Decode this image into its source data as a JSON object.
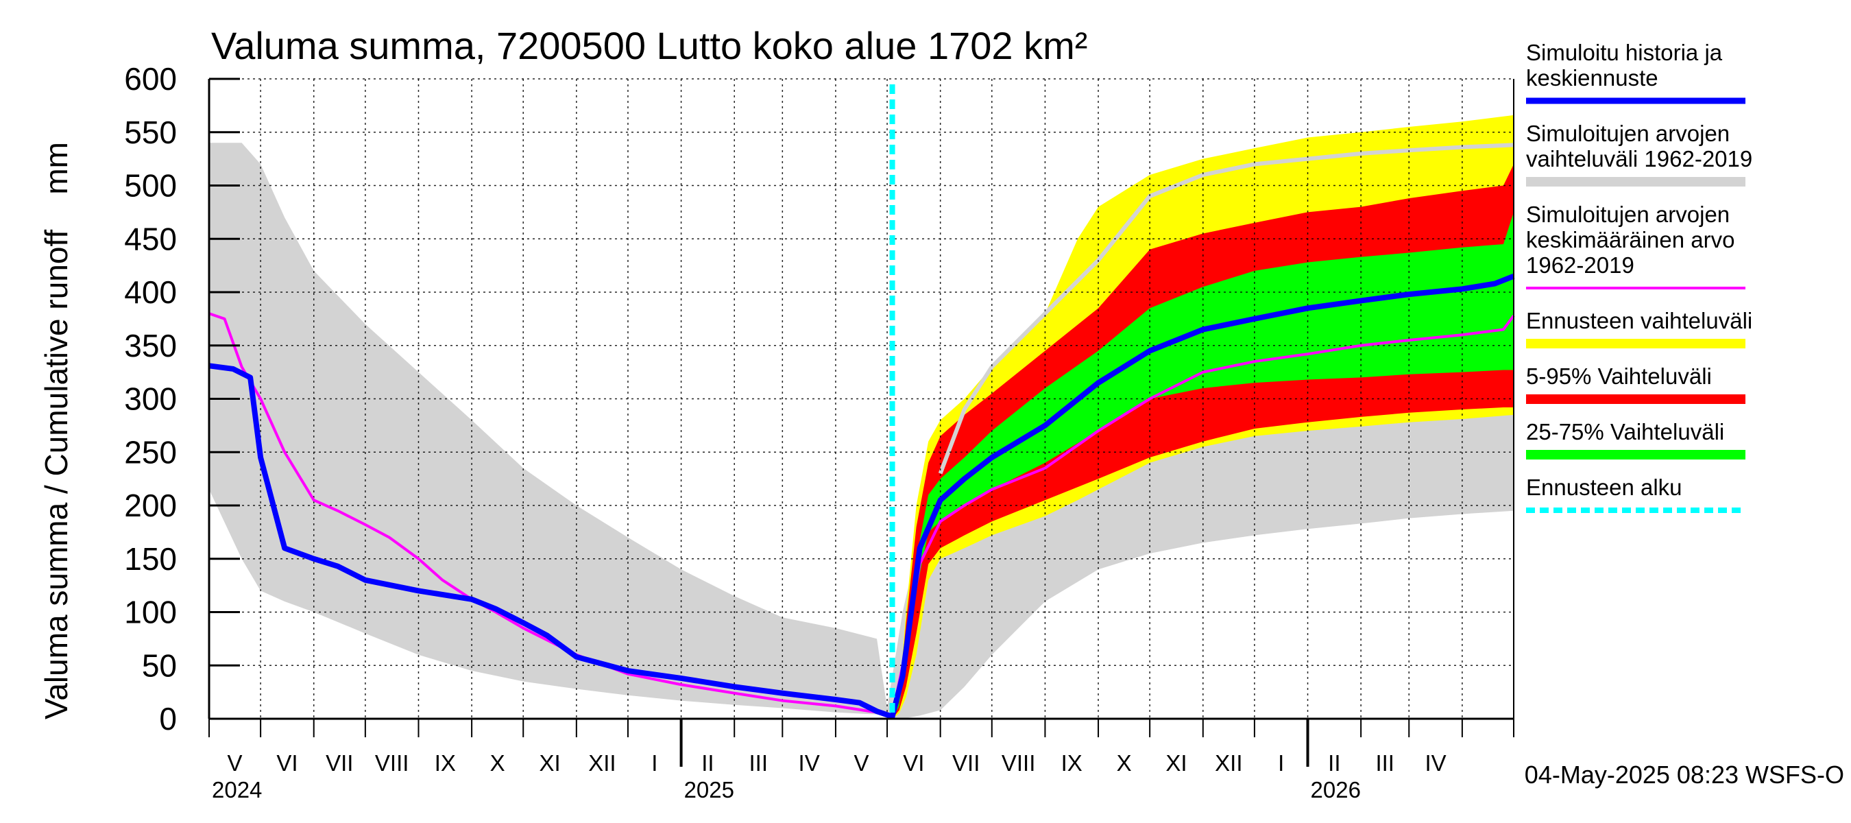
{
  "chart_data": {
    "type": "area",
    "title": "Valuma summa, 7200500 Lutto koko alue 1702 km²",
    "ylabel": "Valuma summa / Cumulative runoff    mm",
    "ylim": [
      0,
      600
    ],
    "yticks": [
      0,
      50,
      100,
      150,
      200,
      250,
      300,
      350,
      400,
      450,
      500,
      550,
      600
    ],
    "x_range": [
      "2024-04-01",
      "2026-05-01"
    ],
    "month_labels": [
      "V",
      "VI",
      "VII",
      "VIII",
      "IX",
      "X",
      "XI",
      "XII",
      "I",
      "II",
      "III",
      "IV",
      "V",
      "VI",
      "VII",
      "VIII",
      "IX",
      "X",
      "XI",
      "XII",
      "I",
      "II",
      "III",
      "IV"
    ],
    "year_labels": [
      {
        "label": "2024",
        "date": "2024-04-01"
      },
      {
        "label": "2025",
        "date": "2025-01-01"
      },
      {
        "label": "2026",
        "date": "2026-01-01"
      }
    ],
    "forecast_start": "2025-05-04",
    "timestamp": "04-May-2025 08:23 WSFS-O",
    "colors": {
      "median": "#0000ff",
      "historical_range": "#d3d3d3",
      "historical_mean": "#ff00ff",
      "forecast_range": "#ffff00",
      "p5_95": "#ff0000",
      "p25_75": "#00ff00",
      "forecast_start": "#00ffff"
    },
    "legend": [
      {
        "key": "median",
        "label": [
          "Simuloitu historia ja",
          "keskiennuste"
        ],
        "style": "line"
      },
      {
        "key": "historical_range",
        "label": [
          "Simuloitujen arvojen",
          "vaihteluväli 1962-2019"
        ],
        "style": "band"
      },
      {
        "key": "historical_mean",
        "label": [
          "Simuloitujen arvojen",
          "keskimääräinen arvo",
          "   1962-2019"
        ],
        "style": "thin"
      },
      {
        "key": "forecast_range",
        "label": [
          "Ennusteen vaihteluväli"
        ],
        "style": "band"
      },
      {
        "key": "p5_95",
        "label": [
          "5-95% Vaihteluväli"
        ],
        "style": "band"
      },
      {
        "key": "p25_75",
        "label": [
          "25-75% Vaihteluväli"
        ],
        "style": "band"
      },
      {
        "key": "forecast_start",
        "label": [
          "Ennusteen alku"
        ],
        "style": "dash"
      }
    ],
    "series": [
      {
        "key": "historical_range",
        "dates": [
          "2024-04-01",
          "2024-04-20",
          "2024-05-01",
          "2024-05-15",
          "2024-06-01",
          "2024-07-01",
          "2024-08-01",
          "2024-09-01",
          "2024-10-01",
          "2024-11-01",
          "2024-12-01",
          "2025-01-01",
          "2025-02-01",
          "2025-03-01",
          "2025-04-01",
          "2025-04-25",
          "2025-05-01",
          "2025-05-10",
          "2025-05-20",
          "2025-06-01",
          "2025-06-15",
          "2025-07-01",
          "2025-08-01",
          "2025-09-01",
          "2025-10-01",
          "2025-11-01",
          "2025-12-01",
          "2026-01-01",
          "2026-02-01",
          "2026-03-01",
          "2026-04-01",
          "2026-05-01"
        ],
        "low": [
          215,
          150,
          120,
          110,
          100,
          80,
          60,
          45,
          35,
          28,
          22,
          17,
          13,
          10,
          6,
          4,
          2,
          0,
          3,
          8,
          30,
          60,
          110,
          140,
          155,
          165,
          172,
          178,
          183,
          188,
          192,
          195
        ],
        "high": [
          540,
          540,
          520,
          470,
          420,
          370,
          325,
          280,
          235,
          200,
          170,
          140,
          115,
          95,
          85,
          75,
          10,
          100,
          170,
          230,
          290,
          330,
          380,
          430,
          490,
          510,
          520,
          525,
          530,
          533,
          536,
          538
        ]
      },
      {
        "key": "forecast_range",
        "dates": [
          "2025-05-04",
          "2025-05-08",
          "2025-05-12",
          "2025-05-18",
          "2025-05-25",
          "2025-06-01",
          "2025-06-15",
          "2025-07-01",
          "2025-08-01",
          "2025-08-20",
          "2025-09-01",
          "2025-10-01",
          "2025-11-01",
          "2025-12-01",
          "2026-01-01",
          "2026-02-01",
          "2026-03-01",
          "2026-04-01",
          "2026-05-01"
        ],
        "low": [
          0,
          5,
          20,
          60,
          130,
          150,
          160,
          172,
          190,
          205,
          215,
          240,
          255,
          265,
          270,
          274,
          278,
          281,
          285
        ],
        "high": [
          0,
          20,
          100,
          200,
          260,
          280,
          300,
          330,
          380,
          450,
          480,
          510,
          525,
          535,
          545,
          550,
          555,
          560,
          566
        ]
      },
      {
        "key": "p5_95",
        "dates": [
          "2025-05-04",
          "2025-05-08",
          "2025-05-12",
          "2025-05-18",
          "2025-05-25",
          "2025-06-01",
          "2025-06-15",
          "2025-07-01",
          "2025-08-01",
          "2025-09-01",
          "2025-10-01",
          "2025-11-01",
          "2025-12-01",
          "2026-01-01",
          "2026-02-01",
          "2026-03-01",
          "2026-04-01",
          "2026-04-25",
          "2026-05-01"
        ],
        "low": [
          0,
          8,
          30,
          80,
          145,
          160,
          172,
          185,
          205,
          225,
          245,
          260,
          272,
          278,
          283,
          287,
          290,
          292,
          292
        ],
        "high": [
          0,
          18,
          90,
          180,
          240,
          265,
          285,
          305,
          345,
          385,
          440,
          455,
          465,
          475,
          480,
          488,
          495,
          500,
          520
        ]
      },
      {
        "key": "p25_75",
        "dates": [
          "2025-05-04",
          "2025-05-08",
          "2025-05-12",
          "2025-05-18",
          "2025-05-25",
          "2025-06-01",
          "2025-06-15",
          "2025-07-01",
          "2025-08-01",
          "2025-09-01",
          "2025-10-01",
          "2025-11-01",
          "2025-12-01",
          "2026-01-01",
          "2026-02-01",
          "2026-03-01",
          "2026-04-01",
          "2026-04-25",
          "2026-05-01"
        ],
        "low": [
          0,
          12,
          55,
          120,
          175,
          185,
          200,
          215,
          240,
          270,
          300,
          310,
          315,
          318,
          320,
          323,
          325,
          327,
          327
        ],
        "high": [
          0,
          15,
          75,
          150,
          210,
          225,
          245,
          270,
          310,
          345,
          385,
          405,
          420,
          428,
          433,
          437,
          442,
          445,
          475
        ]
      },
      {
        "key": "historical_mean",
        "dates": [
          "2024-04-01",
          "2024-04-10",
          "2024-04-20",
          "2024-05-01",
          "2024-05-15",
          "2024-06-01",
          "2024-06-15",
          "2024-07-01",
          "2024-07-15",
          "2024-08-01",
          "2024-08-15",
          "2024-09-01",
          "2024-09-15",
          "2024-10-01",
          "2024-11-01",
          "2024-12-01",
          "2025-01-01",
          "2025-02-01",
          "2025-03-01",
          "2025-04-01",
          "2025-04-25",
          "2025-05-04",
          "2025-05-10",
          "2025-05-20",
          "2025-06-01",
          "2025-06-15",
          "2025-07-01",
          "2025-08-01",
          "2025-09-01",
          "2025-10-01",
          "2025-11-01",
          "2025-12-01",
          "2026-01-01",
          "2026-02-01",
          "2026-03-01",
          "2026-04-01",
          "2026-04-25",
          "2026-05-01"
        ],
        "values": [
          380,
          375,
          330,
          300,
          250,
          205,
          195,
          182,
          170,
          150,
          130,
          112,
          100,
          85,
          60,
          42,
          32,
          24,
          17,
          12,
          6,
          3,
          50,
          145,
          185,
          200,
          215,
          235,
          270,
          300,
          325,
          335,
          342,
          350,
          355,
          360,
          365,
          378
        ]
      },
      {
        "key": "median",
        "dates": [
          "2024-04-01",
          "2024-04-15",
          "2024-04-25",
          "2024-05-01",
          "2024-05-15",
          "2024-06-01",
          "2024-06-15",
          "2024-07-01",
          "2024-08-01",
          "2024-09-01",
          "2024-09-15",
          "2024-10-01",
          "2024-10-15",
          "2024-11-01",
          "2024-12-01",
          "2025-01-01",
          "2025-02-01",
          "2025-03-01",
          "2025-04-01",
          "2025-04-15",
          "2025-04-25",
          "2025-05-04",
          "2025-05-10",
          "2025-05-20",
          "2025-06-01",
          "2025-06-15",
          "2025-07-01",
          "2025-08-01",
          "2025-09-01",
          "2025-10-01",
          "2025-11-01",
          "2025-12-01",
          "2026-01-01",
          "2026-02-01",
          "2026-03-01",
          "2026-04-01",
          "2026-04-20",
          "2026-05-01"
        ],
        "values": [
          331,
          328,
          320,
          245,
          160,
          150,
          143,
          130,
          120,
          112,
          103,
          90,
          78,
          58,
          45,
          38,
          30,
          24,
          18,
          15,
          7,
          2,
          40,
          160,
          205,
          225,
          245,
          275,
          315,
          345,
          365,
          375,
          385,
          392,
          398,
          403,
          408,
          415
        ]
      }
    ]
  }
}
